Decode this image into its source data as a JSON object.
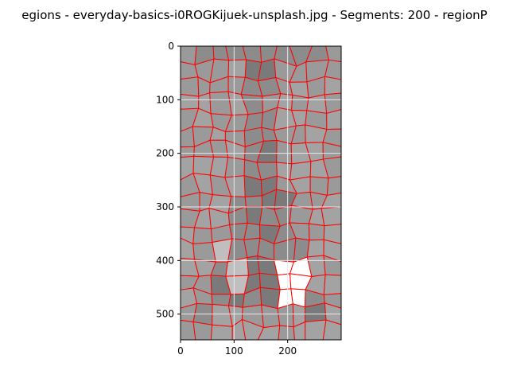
{
  "figure": {
    "title": "egions - everyday-basics-i0ROGKijuek-unsplash.jpg - Segments: 200 - regionP"
  },
  "axes": {
    "x_ticks": [
      "0",
      "100",
      "200"
    ],
    "y_ticks": [
      "0",
      "100",
      "200",
      "300",
      "400",
      "500"
    ],
    "xlim": [
      0,
      300
    ],
    "ylim": [
      548,
      0
    ],
    "grid": true
  },
  "image_panel": {
    "segments": 200,
    "boundary_color": "#ff0000",
    "gray_levels": [
      "#8c8c8c",
      "#9a9a9a",
      "#a3a3a3",
      "#7a7a7a",
      "#bfbfbf",
      "#d9d9d9",
      "#ffffff"
    ]
  }
}
